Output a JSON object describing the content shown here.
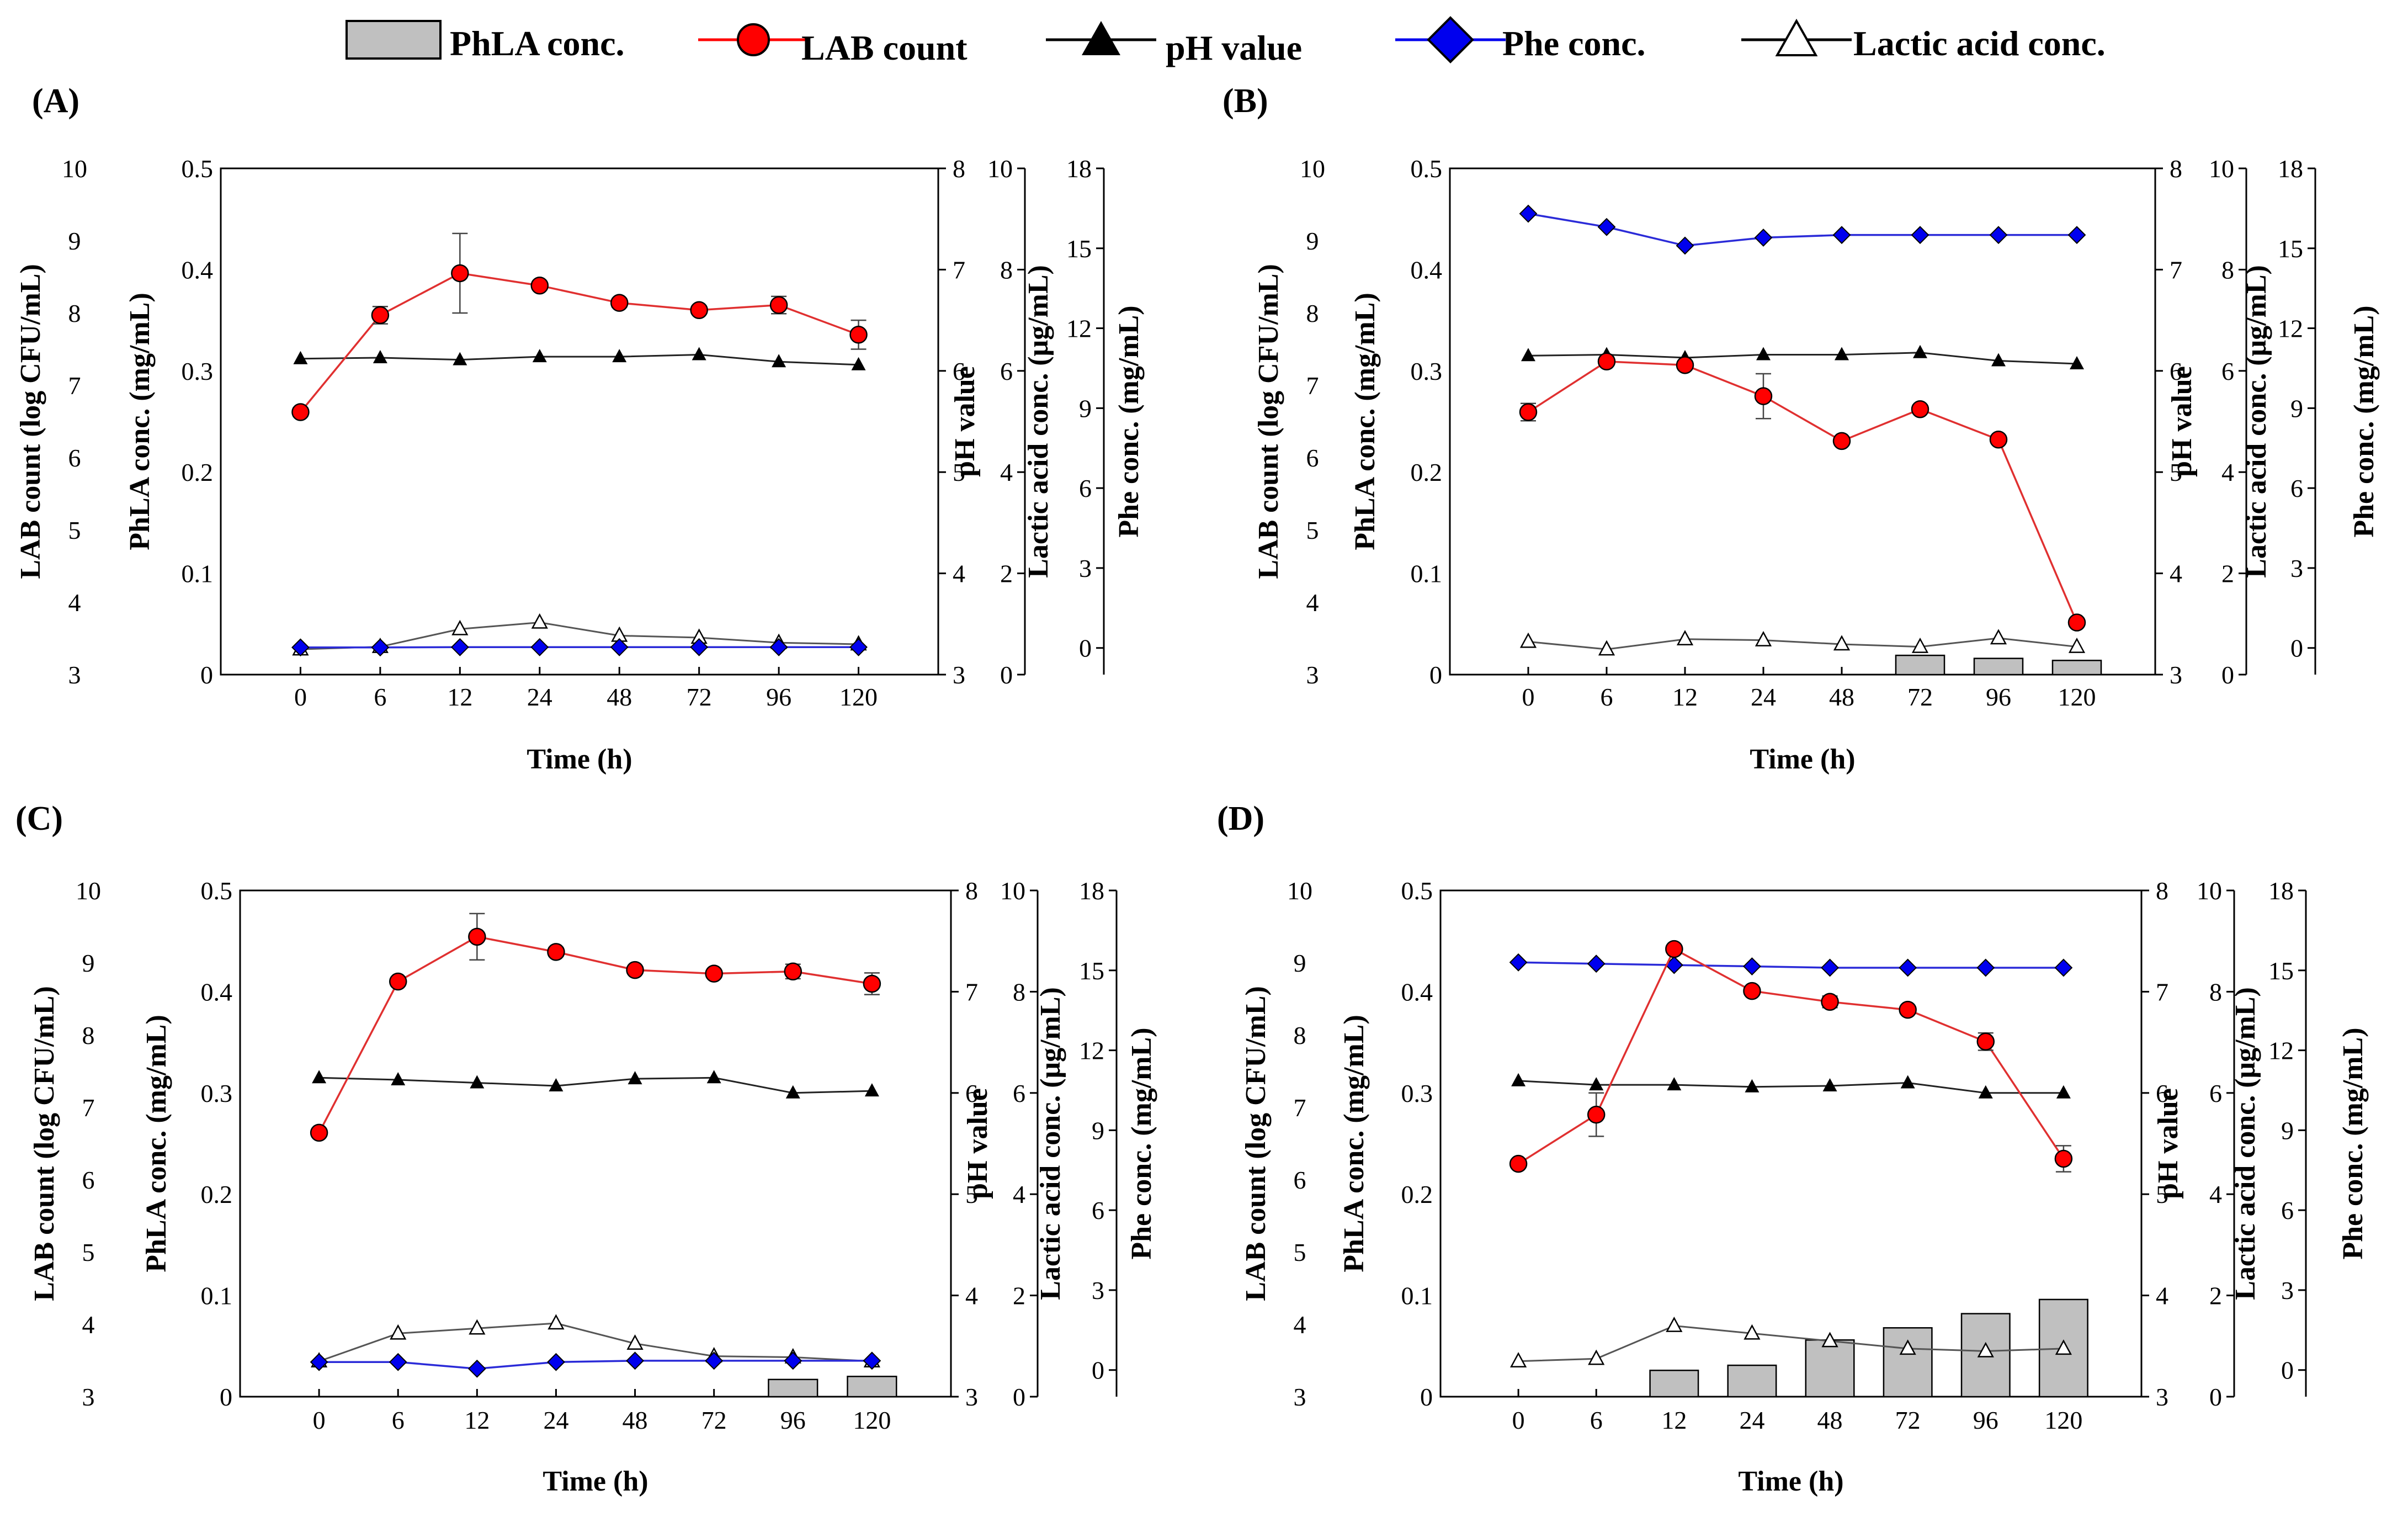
{
  "legend": {
    "phla": "PhLA conc.",
    "lab": "LAB count",
    "ph": "pH value",
    "phe": "Phe conc.",
    "lactic": "Lactic acid conc."
  },
  "colors": {
    "lab": "#ff0000",
    "lab_stroke": "#e03030",
    "phe": "#0000ee",
    "phe_line": "#2b2bd8",
    "ph": "#000000",
    "bar": "#c0c0c0",
    "lactic": "#ffffff"
  },
  "chart_data": [
    {
      "panel": "(A)",
      "type": "bar+line",
      "categories": [
        "0",
        "6",
        "12",
        "24",
        "48",
        "72",
        "96",
        "120"
      ],
      "xlabel": "Time (h)",
      "axes": {
        "lab": {
          "label": "LAB count (log CFU/mL)",
          "range": [
            3,
            10
          ],
          "ticks": [
            "3",
            "4",
            "5",
            "6",
            "7",
            "8",
            "9",
            "10"
          ]
        },
        "phla": {
          "label": "PhLA conc. (mg/mL)",
          "range": [
            0,
            0.5
          ],
          "ticks": [
            "0",
            "0.1",
            "0.2",
            "0.3",
            "0.4",
            "0.5"
          ]
        },
        "ph": {
          "label": "pH value",
          "range": [
            3,
            8
          ],
          "ticks": [
            "3",
            "4",
            "5",
            "6",
            "7",
            "8"
          ]
        },
        "lactic": {
          "label": "Lactic acid conc. (μg/mL)",
          "range": [
            0,
            10
          ],
          "ticks": [
            "0",
            "2",
            "4",
            "6",
            "8",
            "10"
          ]
        },
        "phe": {
          "label": "Phe conc. (mg/mL)",
          "range": [
            -1,
            18
          ],
          "ticks": [
            "0",
            "3",
            "6",
            "9",
            "12",
            "15",
            "18"
          ]
        }
      },
      "series": [
        {
          "name": "PhLA conc.",
          "axis": "phla",
          "kind": "bar",
          "values": [
            0,
            0,
            0,
            0,
            0,
            0,
            0,
            0
          ]
        },
        {
          "name": "LAB count",
          "axis": "lab",
          "kind": "line",
          "values": [
            6.63,
            7.97,
            8.55,
            8.38,
            8.14,
            8.04,
            8.11,
            7.7
          ],
          "errors": [
            0.06,
            0.12,
            0.55,
            0.05,
            0.06,
            0.03,
            0.12,
            0.2
          ]
        },
        {
          "name": "pH value",
          "axis": "ph",
          "kind": "line",
          "values": [
            6.12,
            6.13,
            6.11,
            6.14,
            6.14,
            6.16,
            6.09,
            6.06
          ]
        },
        {
          "name": "Phe conc.",
          "axis": "phe",
          "kind": "line",
          "values": [
            0.02,
            0.02,
            0.03,
            0.03,
            0.03,
            0.03,
            0.03,
            0.03
          ]
        },
        {
          "name": "Lactic acid conc.",
          "axis": "lactic",
          "kind": "line",
          "values": [
            0.5,
            0.55,
            0.9,
            1.03,
            0.77,
            0.73,
            0.63,
            0.6
          ]
        }
      ]
    },
    {
      "panel": "(B)",
      "type": "bar+line",
      "categories": [
        "0",
        "6",
        "12",
        "24",
        "48",
        "72",
        "96",
        "120"
      ],
      "xlabel": "Time (h)",
      "axes": {
        "lab": {
          "label": "LAB count (log CFU/mL)",
          "range": [
            3,
            10
          ],
          "ticks": [
            "3",
            "4",
            "5",
            "6",
            "7",
            "8",
            "9",
            "10"
          ]
        },
        "phla": {
          "label": "PhLA conc. (mg/mL)",
          "range": [
            0,
            0.5
          ],
          "ticks": [
            "0",
            "0.1",
            "0.2",
            "0.3",
            "0.4",
            "0.5"
          ]
        },
        "ph": {
          "label": "pH value",
          "range": [
            3,
            8
          ],
          "ticks": [
            "3",
            "4",
            "5",
            "6",
            "7",
            "8"
          ]
        },
        "lactic": {
          "label": "Lactic acid conc. (μg/mL)",
          "range": [
            0,
            10
          ],
          "ticks": [
            "0",
            "2",
            "4",
            "6",
            "8",
            "10"
          ]
        },
        "phe": {
          "label": "Phe conc. (mg/mL)",
          "range": [
            -1,
            18
          ],
          "ticks": [
            "0",
            "3",
            "6",
            "9",
            "12",
            "15",
            "18"
          ]
        }
      },
      "series": [
        {
          "name": "PhLA conc.",
          "axis": "phla",
          "kind": "bar",
          "values": [
            0,
            0,
            0,
            0,
            0,
            0.019,
            0.016,
            0.014
          ]
        },
        {
          "name": "LAB count",
          "axis": "lab",
          "kind": "line",
          "values": [
            6.63,
            7.33,
            7.28,
            6.85,
            6.23,
            6.67,
            6.25,
            3.72
          ],
          "errors": [
            0.12,
            0.04,
            0.05,
            0.31,
            0.04,
            0.03,
            0.04,
            0.04
          ]
        },
        {
          "name": "pH value",
          "axis": "ph",
          "kind": "line",
          "values": [
            6.15,
            6.16,
            6.13,
            6.16,
            6.16,
            6.18,
            6.1,
            6.07
          ]
        },
        {
          "name": "Phe conc.",
          "axis": "phe",
          "kind": "line",
          "values": [
            16.3,
            15.8,
            15.1,
            15.4,
            15.5,
            15.5,
            15.5,
            15.5
          ]
        },
        {
          "name": "Lactic acid conc.",
          "axis": "lactic",
          "kind": "line",
          "values": [
            0.65,
            0.5,
            0.7,
            0.68,
            0.6,
            0.55,
            0.72,
            0.55
          ]
        }
      ]
    },
    {
      "panel": "(C)",
      "type": "bar+line",
      "categories": [
        "0",
        "6",
        "12",
        "24",
        "48",
        "72",
        "96",
        "120"
      ],
      "xlabel": "Time (h)",
      "axes": {
        "lab": {
          "label": "LAB count (log CFU/mL)",
          "range": [
            3,
            10
          ],
          "ticks": [
            "3",
            "4",
            "5",
            "6",
            "7",
            "8",
            "9",
            "10"
          ]
        },
        "phla": {
          "label": "PhLA conc. (mg/mL)",
          "range": [
            0,
            0.5
          ],
          "ticks": [
            "0",
            "0.1",
            "0.2",
            "0.3",
            "0.4",
            "0.5"
          ]
        },
        "ph": {
          "label": "pH value",
          "range": [
            3,
            8
          ],
          "ticks": [
            "3",
            "4",
            "5",
            "6",
            "7",
            "8"
          ]
        },
        "lactic": {
          "label": "Lactic acid conc. (μg/mL)",
          "range": [
            0,
            10
          ],
          "ticks": [
            "0",
            "2",
            "4",
            "6",
            "8",
            "10"
          ]
        },
        "phe": {
          "label": "Phe conc. (mg/mL)",
          "range": [
            -1,
            18
          ],
          "ticks": [
            "0",
            "3",
            "6",
            "9",
            "12",
            "15",
            "18"
          ]
        }
      },
      "series": [
        {
          "name": "PhLA conc.",
          "axis": "phla",
          "kind": "bar",
          "values": [
            0,
            0,
            0,
            0,
            0,
            0,
            0.017,
            0.02
          ]
        },
        {
          "name": "LAB count",
          "axis": "lab",
          "kind": "line",
          "values": [
            6.65,
            8.74,
            9.36,
            9.15,
            8.9,
            8.85,
            8.88,
            8.71
          ],
          "errors": [
            0.04,
            0.04,
            0.32,
            0.06,
            0.03,
            0.03,
            0.1,
            0.15
          ]
        },
        {
          "name": "pH value",
          "axis": "ph",
          "kind": "line",
          "values": [
            6.15,
            6.13,
            6.1,
            6.07,
            6.14,
            6.15,
            6.0,
            6.02
          ]
        },
        {
          "name": "Phe conc.",
          "axis": "phe",
          "kind": "line",
          "values": [
            0.3,
            0.3,
            0.05,
            0.3,
            0.35,
            0.35,
            0.35,
            0.35
          ]
        },
        {
          "name": "Lactic acid conc.",
          "axis": "lactic",
          "kind": "line",
          "values": [
            0.7,
            1.25,
            1.35,
            1.45,
            1.05,
            0.8,
            0.78,
            0.7
          ]
        }
      ]
    },
    {
      "panel": "(D)",
      "type": "bar+line",
      "categories": [
        "0",
        "6",
        "12",
        "24",
        "48",
        "72",
        "96",
        "120"
      ],
      "xlabel": "Time (h)",
      "axes": {
        "lab": {
          "label": "LAB count (log CFU/mL)",
          "range": [
            3,
            10
          ],
          "ticks": [
            "3",
            "4",
            "5",
            "6",
            "7",
            "8",
            "9",
            "10"
          ]
        },
        "phla": {
          "label": "PhLA conc. (mg/mL)",
          "range": [
            0,
            0.5
          ],
          "ticks": [
            "0",
            "0.1",
            "0.2",
            "0.3",
            "0.4",
            "0.5"
          ]
        },
        "ph": {
          "label": "pH value",
          "range": [
            3,
            8
          ],
          "ticks": [
            "3",
            "4",
            "5",
            "6",
            "7",
            "8"
          ]
        },
        "lactic": {
          "label": "Lactic acid conc. (μg/mL)",
          "range": [
            0,
            10
          ],
          "ticks": [
            "0",
            "2",
            "4",
            "6",
            "8",
            "10"
          ]
        },
        "phe": {
          "label": "Phe conc. (mg/mL)",
          "range": [
            -1,
            18
          ],
          "ticks": [
            "0",
            "3",
            "6",
            "9",
            "12",
            "15",
            "18"
          ]
        }
      },
      "series": [
        {
          "name": "PhLA conc.",
          "axis": "phla",
          "kind": "bar",
          "values": [
            0,
            0,
            0.026,
            0.031,
            0.056,
            0.068,
            0.082,
            0.096
          ]
        },
        {
          "name": "LAB count",
          "axis": "lab",
          "kind": "line",
          "values": [
            6.22,
            6.9,
            9.19,
            8.61,
            8.46,
            8.35,
            7.91,
            6.29
          ],
          "errors": [
            0.05,
            0.3,
            0.03,
            0.04,
            0.08,
            0.05,
            0.12,
            0.18
          ]
        },
        {
          "name": "pH value",
          "axis": "ph",
          "kind": "line",
          "values": [
            6.12,
            6.08,
            6.08,
            6.06,
            6.07,
            6.1,
            6.0,
            6.0
          ]
        },
        {
          "name": "Phe conc.",
          "axis": "phe",
          "kind": "line",
          "values": [
            15.3,
            15.25,
            15.2,
            15.15,
            15.1,
            15.1,
            15.1,
            15.1
          ]
        },
        {
          "name": "Lactic acid conc.",
          "axis": "lactic",
          "kind": "line",
          "values": [
            0.7,
            0.75,
            1.4,
            1.25,
            1.1,
            0.95,
            0.9,
            0.95
          ]
        }
      ]
    }
  ]
}
